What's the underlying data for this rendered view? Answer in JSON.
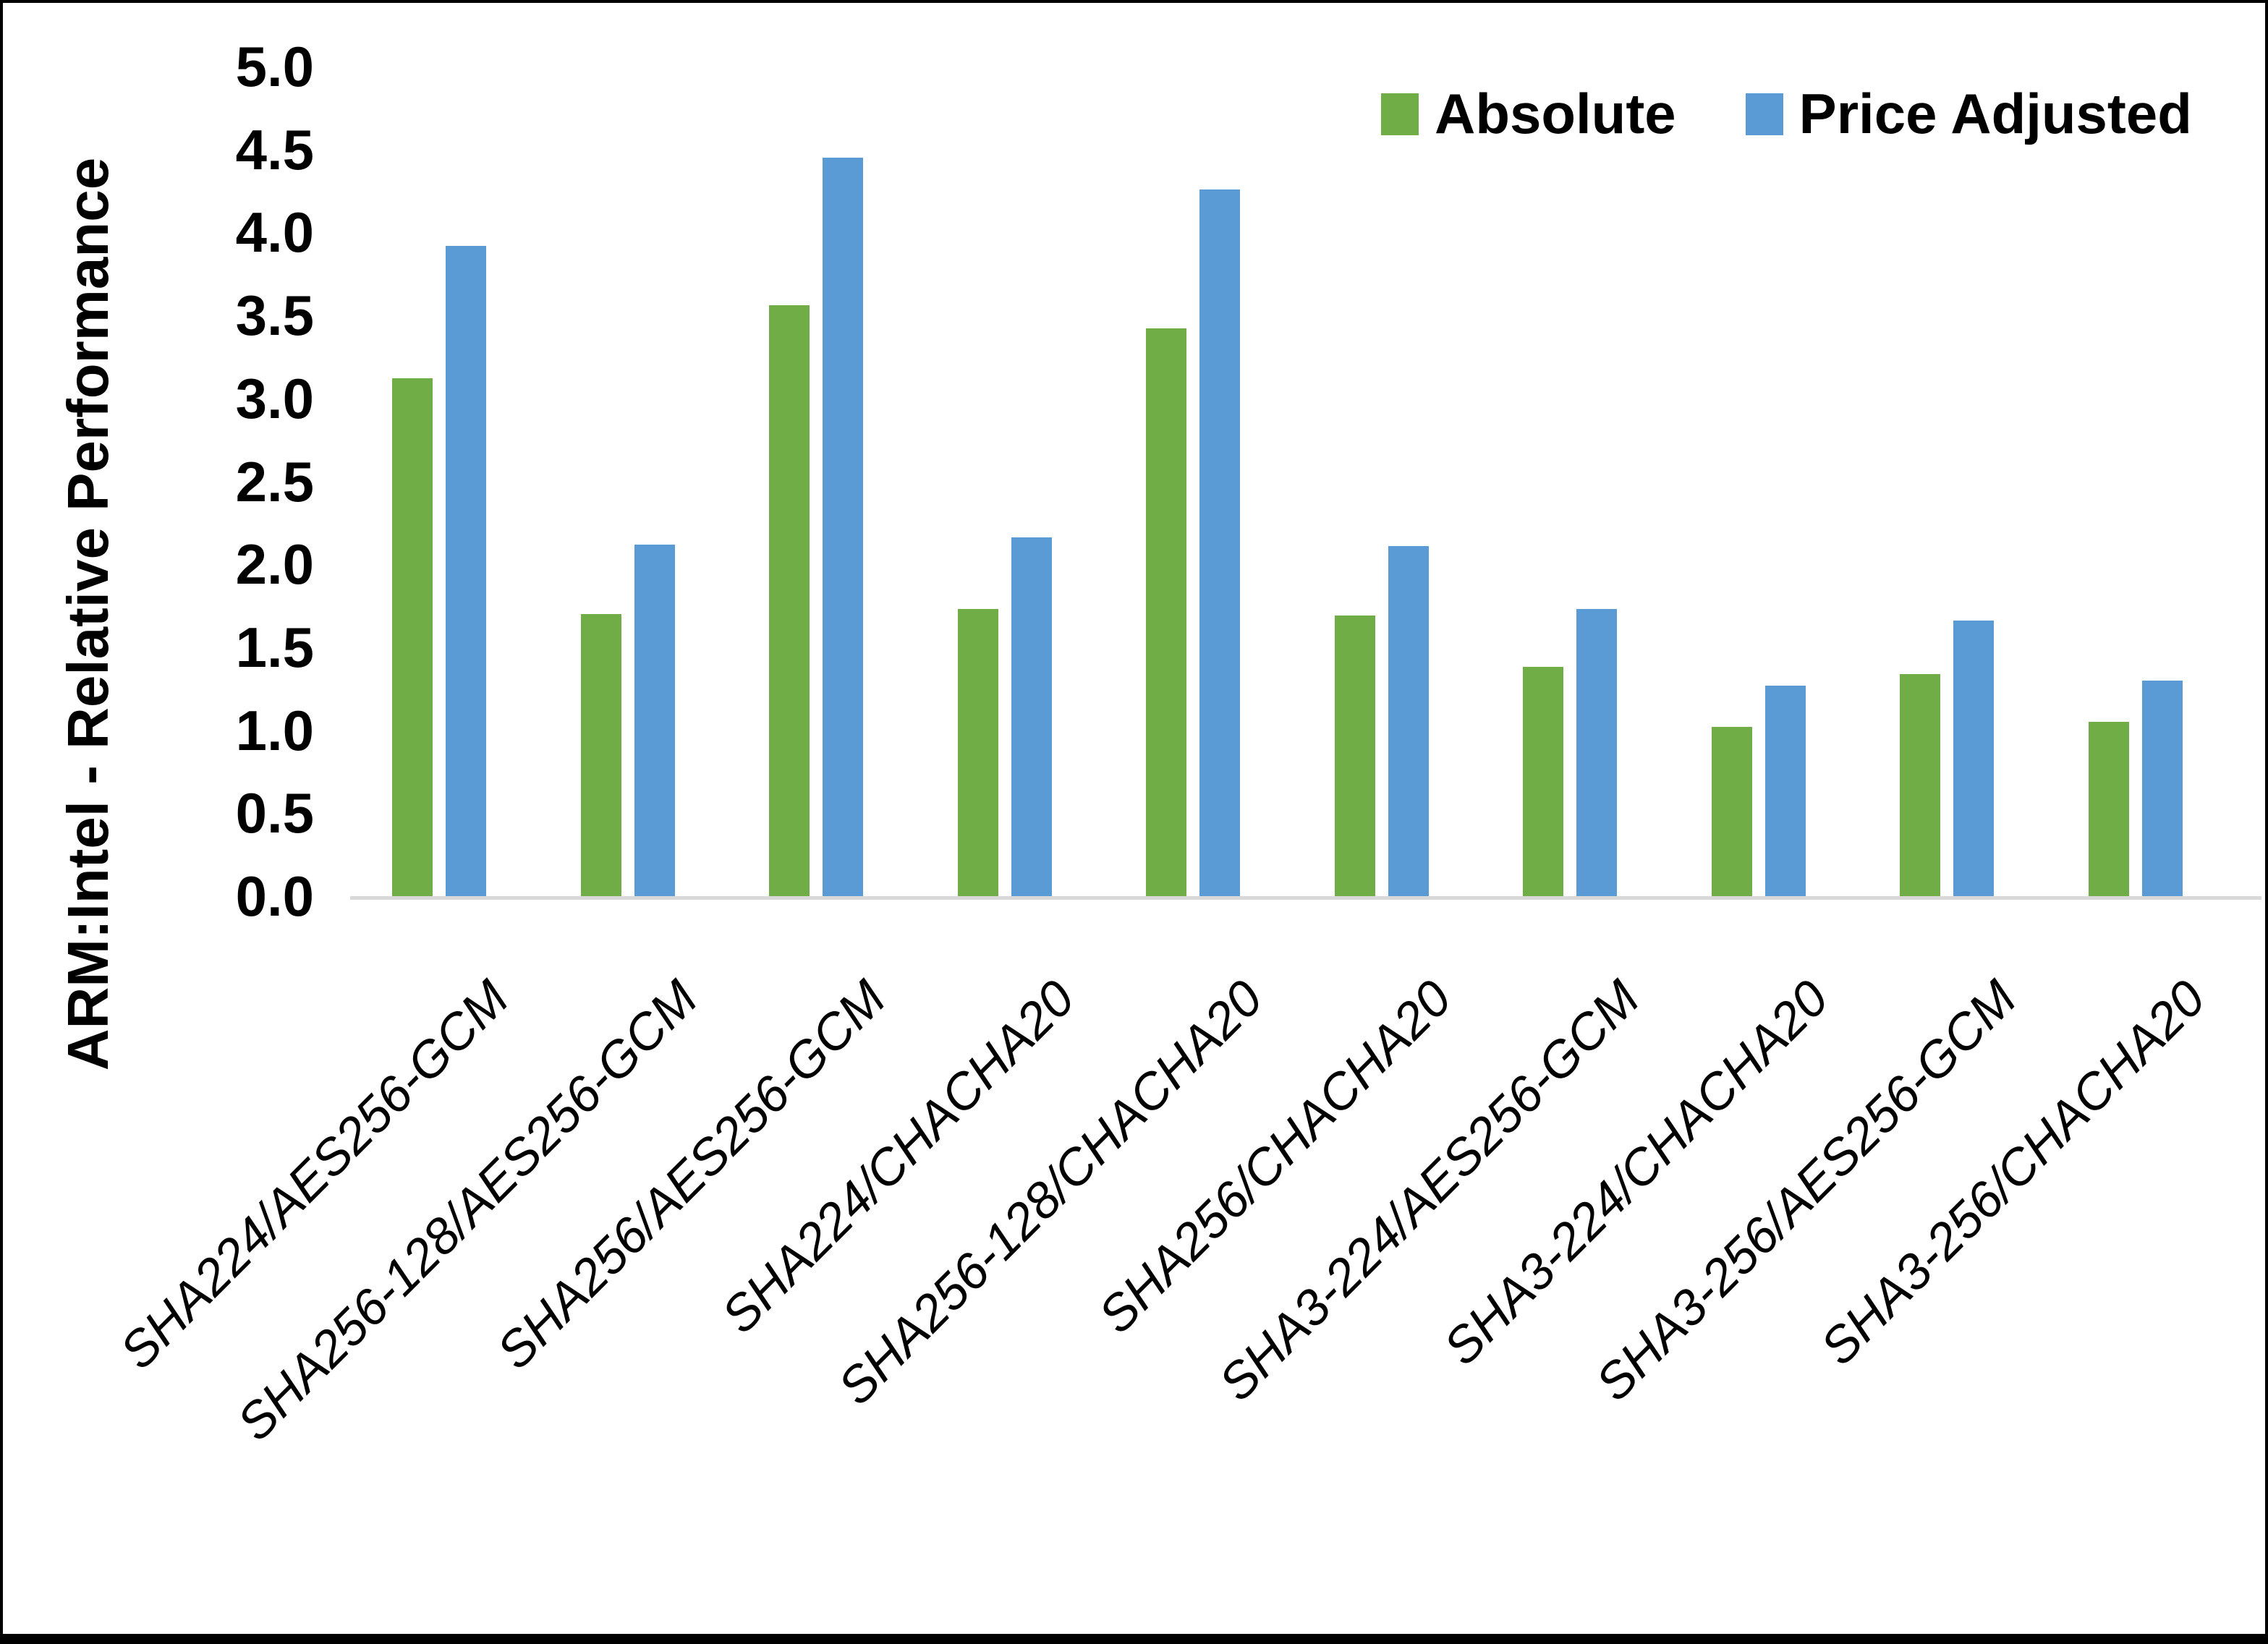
{
  "chart_data": {
    "type": "bar",
    "title": "",
    "xlabel": "",
    "ylabel": "ARM:Intel - Relative Performance",
    "ylim": [
      0.0,
      5.0
    ],
    "ytick_step": 0.5,
    "yticks": [
      "0.0",
      "0.5",
      "1.0",
      "1.5",
      "2.0",
      "2.5",
      "3.0",
      "3.5",
      "4.0",
      "4.5",
      "5.0"
    ],
    "grid": false,
    "legend_position": "top-right",
    "categories": [
      "SHA224/AES256-GCM",
      "SHA256-128/AES256-GCM",
      "SHA256/AES256-GCM",
      "SHA224/CHACHA20",
      "SHA256-128/CHACHA20",
      "SHA256/CHACHA20",
      "SHA3-224/AES256-GCM",
      "SHA3-224/CHACHA20",
      "SHA3-256/AES256-GCM",
      "SHA3-256/CHACHA20"
    ],
    "series": [
      {
        "name": "Absolute",
        "color": "#70AD47",
        "values": [
          3.12,
          1.7,
          3.56,
          1.73,
          3.42,
          1.69,
          1.38,
          1.02,
          1.34,
          1.05
        ]
      },
      {
        "name": "Price Adjusted",
        "color": "#5B9BD5",
        "values": [
          3.92,
          2.12,
          4.45,
          2.16,
          4.26,
          2.11,
          1.73,
          1.27,
          1.66,
          1.3
        ]
      }
    ]
  },
  "colors": {
    "background": "#FFFFFF",
    "axis_line": "#D9D9D9",
    "text": "#000000",
    "border": "#000000"
  }
}
